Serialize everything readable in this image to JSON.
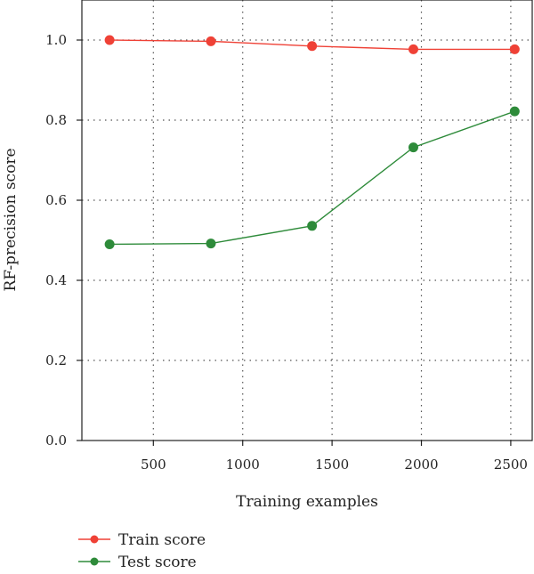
{
  "chart_data": {
    "type": "line",
    "title": "",
    "xlabel": "Training examples",
    "ylabel": "RF-precision score",
    "x": [
      255,
      822,
      1388,
      1955,
      2522
    ],
    "xlim": [
      100,
      2620
    ],
    "ylim": [
      0,
      1.1
    ],
    "xticks": [
      500,
      1000,
      1500,
      2000,
      2500
    ],
    "yticks": [
      0.0,
      0.2,
      0.4,
      0.6,
      0.8,
      1.0
    ],
    "xtick_labels": [
      "500",
      "1000",
      "1500",
      "2000",
      "2500"
    ],
    "ytick_labels": [
      "0.0",
      "0.2",
      "0.4",
      "0.6",
      "0.8",
      "1.0"
    ],
    "grid": true,
    "legend_position": "bottom-left, below plot",
    "series": [
      {
        "name": "Train score",
        "color": "#ef4136",
        "values": [
          1.0,
          0.997,
          0.985,
          0.977,
          0.977
        ]
      },
      {
        "name": "Test score",
        "color": "#2e8b3a",
        "values": [
          0.49,
          0.492,
          0.536,
          0.732,
          0.822
        ]
      }
    ]
  }
}
